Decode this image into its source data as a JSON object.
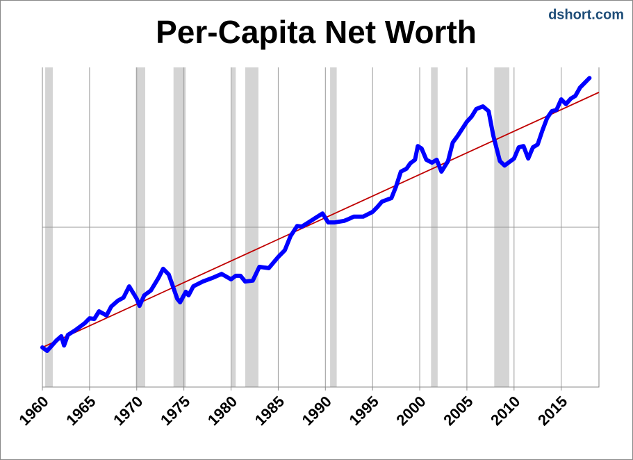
{
  "chart_data": {
    "type": "line",
    "title": "Per-Capita Net Worth",
    "watermark": "dshort.com",
    "xlim": [
      1960,
      2019
    ],
    "xticks": [
      1960,
      1965,
      1970,
      1975,
      1980,
      1985,
      1990,
      1995,
      2000,
      2005,
      2010,
      2015
    ],
    "ylim": [
      0,
      100
    ],
    "yticks": [
      50
    ],
    "show_ytick_labels": false,
    "grid": true,
    "shaded_periods": [
      [
        1960.3,
        1961.1
      ],
      [
        1969.9,
        1970.9
      ],
      [
        1973.9,
        1975.2
      ],
      [
        1980.0,
        1980.5
      ],
      [
        1981.5,
        1982.9
      ],
      [
        1990.5,
        1991.2
      ],
      [
        2001.2,
        2001.9
      ],
      [
        2007.9,
        2009.5
      ]
    ],
    "shade_color": "#d4d4d4",
    "trend": {
      "color": "#c00000",
      "x": [
        1960,
        2019
      ],
      "values": [
        12.4,
        92.2
      ]
    },
    "series": [
      {
        "color": "#0000ff",
        "x": [
          1960,
          1960.5,
          1961.5,
          1962,
          1962.3,
          1962.7,
          1963.5,
          1964.5,
          1965,
          1965.5,
          1966,
          1966.8,
          1967.3,
          1968,
          1968.6,
          1969.2,
          1970,
          1970.3,
          1970.8,
          1971.5,
          1972.3,
          1972.8,
          1973.4,
          1974.3,
          1974.6,
          1975.2,
          1975.5,
          1976,
          1977,
          1978,
          1979,
          1980,
          1980.5,
          1981,
          1981.5,
          1982.3,
          1983,
          1984,
          1985,
          1985.7,
          1986.3,
          1987,
          1987.5,
          1988,
          1989,
          1989.7,
          1990.3,
          1991,
          1992,
          1992.5,
          1993,
          1994,
          1995,
          1995.5,
          1996,
          1997,
          1997.5,
          1998,
          1998.6,
          1999,
          1999.5,
          1999.8,
          2000.2,
          2000.7,
          2001.3,
          2001.8,
          2002.3,
          2003,
          2003.5,
          2004,
          2005,
          2005.5,
          2006,
          2006.7,
          2007.3,
          2007.8,
          2008.5,
          2009,
          2010,
          2010.5,
          2011,
          2011.5,
          2012,
          2012.5,
          2013,
          2013.5,
          2014,
          2014.5,
          2015,
          2015.5,
          2016,
          2016.5,
          2017,
          2017.5,
          2018
        ],
        "values": [
          12.4,
          11.3,
          14.6,
          15.9,
          13.0,
          16.3,
          17.8,
          20.0,
          21.5,
          21.3,
          23.7,
          22.4,
          25.2,
          27.0,
          28.0,
          31.5,
          27.6,
          25.4,
          28.7,
          30.2,
          34.1,
          37.0,
          35.2,
          27.6,
          26.5,
          29.8,
          28.7,
          31.5,
          33.0,
          34.1,
          35.4,
          33.7,
          34.8,
          34.8,
          33.0,
          33.3,
          37.6,
          37.2,
          40.7,
          42.8,
          47.2,
          50.4,
          50.2,
          51.1,
          53.0,
          54.3,
          51.5,
          51.5,
          52.0,
          52.6,
          53.3,
          53.3,
          54.8,
          56.3,
          58.0,
          59.1,
          62.8,
          67.4,
          68.3,
          70.0,
          71.1,
          75.4,
          74.6,
          71.1,
          70.2,
          71.1,
          67.4,
          70.7,
          76.5,
          78.5,
          83.0,
          84.6,
          87.0,
          87.8,
          86.3,
          78.7,
          70.7,
          69.3,
          71.5,
          75.0,
          75.4,
          71.5,
          75.0,
          75.9,
          80.2,
          84.1,
          86.3,
          86.7,
          90.0,
          88.5,
          90.2,
          91.1,
          93.7,
          95.2,
          96.7
        ]
      }
    ]
  }
}
